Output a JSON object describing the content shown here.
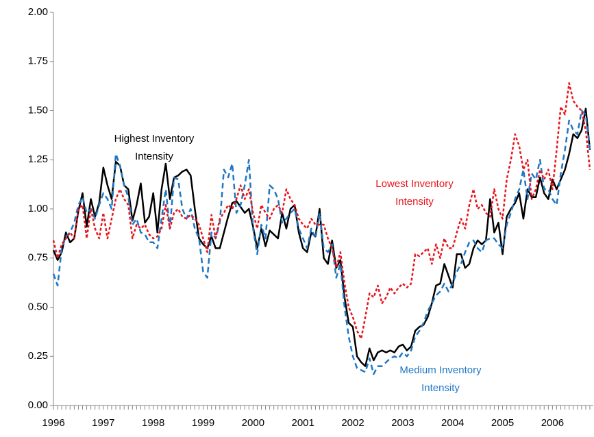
{
  "chart_data": {
    "type": "line",
    "categories": [
      "1996",
      null,
      null,
      null,
      null,
      null,
      null,
      null,
      null,
      null,
      null,
      null,
      "1997",
      null,
      null,
      null,
      null,
      null,
      null,
      null,
      null,
      null,
      null,
      null,
      "1998",
      null,
      null,
      null,
      null,
      null,
      null,
      null,
      null,
      null,
      null,
      null,
      "1999",
      null,
      null,
      null,
      null,
      null,
      null,
      null,
      null,
      null,
      null,
      null,
      "2000",
      null,
      null,
      null,
      null,
      null,
      null,
      null,
      null,
      null,
      null,
      null,
      "2001",
      null,
      null,
      null,
      null,
      null,
      null,
      null,
      null,
      null,
      null,
      null,
      "2002",
      null,
      null,
      null,
      null,
      null,
      null,
      null,
      null,
      null,
      null,
      null,
      "2003",
      null,
      null,
      null,
      null,
      null,
      null,
      null,
      null,
      null,
      null,
      null,
      "2004",
      null,
      null,
      null,
      null,
      null,
      null,
      null,
      null,
      null,
      null,
      null,
      "2005",
      null,
      null,
      null,
      null,
      null,
      null,
      null,
      null,
      null,
      null,
      null,
      "2006",
      null,
      null,
      null,
      null,
      null,
      null,
      null,
      null,
      null
    ],
    "series": [
      {
        "label_lines": [
          "Highest Inventory",
          "Intensity"
        ],
        "color": "#000000",
        "dash": "solid",
        "values": [
          0.79,
          0.74,
          0.78,
          0.88,
          0.83,
          0.85,
          0.99,
          1.08,
          0.91,
          1.05,
          0.96,
          1.03,
          1.21,
          1.12,
          1.05,
          1.24,
          1.22,
          1.12,
          1.1,
          0.94,
          1.02,
          1.13,
          0.93,
          0.96,
          1.08,
          0.88,
          1.1,
          1.23,
          1.05,
          1.16,
          1.17,
          1.19,
          1.2,
          1.17,
          1.0,
          0.85,
          0.82,
          0.8,
          0.86,
          0.8,
          0.8,
          0.88,
          0.96,
          1.03,
          1.04,
          1.01,
          0.98,
          1.0,
          0.91,
          0.8,
          0.9,
          0.81,
          0.89,
          0.87,
          0.85,
          0.98,
          0.9,
          1.0,
          1.02,
          0.88,
          0.8,
          0.78,
          0.88,
          0.86,
          1.0,
          0.75,
          0.72,
          0.84,
          0.7,
          0.74,
          0.55,
          0.42,
          0.4,
          0.25,
          0.22,
          0.2,
          0.29,
          0.23,
          0.27,
          0.28,
          0.27,
          0.28,
          0.27,
          0.3,
          0.31,
          0.28,
          0.3,
          0.38,
          0.4,
          0.41,
          0.45,
          0.52,
          0.61,
          0.62,
          0.72,
          0.66,
          0.6,
          0.77,
          0.77,
          0.7,
          0.72,
          0.8,
          0.84,
          0.82,
          0.84,
          1.05,
          0.88,
          0.93,
          0.77,
          0.96,
          1.0,
          1.03,
          1.08,
          0.95,
          1.1,
          1.06,
          1.06,
          1.16,
          1.08,
          1.05,
          1.15,
          1.1,
          1.15,
          1.2,
          1.28,
          1.38,
          1.36,
          1.4,
          1.51,
          1.3
        ]
      },
      {
        "label_lines": [
          "Medium Inventory",
          "Intensity"
        ],
        "color": "#1f77c4",
        "dash": "dashed",
        "values": [
          0.67,
          0.61,
          0.8,
          0.86,
          0.88,
          0.93,
          1.02,
          1.06,
          0.98,
          1.0,
          0.95,
          1.02,
          1.08,
          1.05,
          1.0,
          1.28,
          1.22,
          1.12,
          1.06,
          0.92,
          0.95,
          0.88,
          0.87,
          0.83,
          0.83,
          0.8,
          0.95,
          1.1,
          0.9,
          1.16,
          1.15,
          1.0,
          0.95,
          1.0,
          0.9,
          0.85,
          0.68,
          0.65,
          0.88,
          0.85,
          0.93,
          1.2,
          1.16,
          1.23,
          0.98,
          1.02,
          1.12,
          1.25,
          0.9,
          0.77,
          0.92,
          0.85,
          1.12,
          1.1,
          1.05,
          0.93,
          0.95,
          0.98,
          1.0,
          0.9,
          0.85,
          0.8,
          0.9,
          0.85,
          0.98,
          0.8,
          0.78,
          0.82,
          0.65,
          0.72,
          0.5,
          0.35,
          0.25,
          0.19,
          0.18,
          0.17,
          0.24,
          0.16,
          0.2,
          0.2,
          0.22,
          0.24,
          0.25,
          0.24,
          0.27,
          0.25,
          0.28,
          0.35,
          0.38,
          0.42,
          0.48,
          0.52,
          0.56,
          0.58,
          0.62,
          0.58,
          0.62,
          0.68,
          0.72,
          0.78,
          0.83,
          0.84,
          0.8,
          0.78,
          0.84,
          0.85,
          0.85,
          0.82,
          0.8,
          0.92,
          0.98,
          1.05,
          1.1,
          1.2,
          1.05,
          1.18,
          1.15,
          1.25,
          1.1,
          1.1,
          1.05,
          1.02,
          1.18,
          1.3,
          1.45,
          1.4,
          1.38,
          1.5,
          1.48,
          1.3
        ]
      },
      {
        "label_lines": [
          "Lowest Inventory",
          "Intensity"
        ],
        "color": "#e8141c",
        "dash": "dotted",
        "values": [
          0.84,
          0.75,
          0.82,
          0.85,
          0.88,
          0.85,
          1.0,
          1.02,
          0.85,
          1.0,
          0.9,
          0.85,
          0.98,
          0.85,
          0.95,
          1.05,
          1.1,
          1.05,
          1.02,
          0.85,
          0.92,
          0.9,
          0.92,
          0.87,
          0.85,
          0.86,
          0.9,
          1.02,
          0.9,
          0.98,
          1.0,
          0.96,
          0.95,
          0.97,
          0.95,
          0.92,
          0.85,
          0.78,
          0.97,
          0.85,
          0.95,
          0.98,
          1.02,
          1.0,
          1.05,
          1.12,
          1.05,
          1.1,
          0.98,
          0.9,
          1.02,
          0.98,
          0.95,
          1.0,
          1.02,
          0.98,
          1.1,
          1.05,
          1.02,
          0.95,
          0.92,
          0.9,
          0.95,
          0.92,
          0.92,
          0.92,
          0.85,
          0.8,
          0.7,
          0.78,
          0.62,
          0.5,
          0.45,
          0.38,
          0.34,
          0.45,
          0.57,
          0.55,
          0.61,
          0.52,
          0.55,
          0.6,
          0.57,
          0.6,
          0.62,
          0.6,
          0.62,
          0.77,
          0.76,
          0.78,
          0.8,
          0.72,
          0.82,
          0.75,
          0.85,
          0.8,
          0.8,
          0.88,
          0.95,
          0.9,
          1.02,
          1.1,
          1.0,
          1.02,
          0.98,
          0.96,
          1.1,
          1.0,
          0.95,
          1.15,
          1.25,
          1.38,
          1.32,
          1.2,
          1.25,
          1.05,
          1.1,
          1.2,
          1.15,
          1.2,
          1.1,
          1.3,
          1.52,
          1.48,
          1.64,
          1.55,
          1.52,
          1.5,
          1.4,
          1.2
        ]
      }
    ],
    "ylim": [
      0,
      2
    ],
    "yticks": [
      {
        "value": 0,
        "label": "0.00"
      },
      {
        "value": 0.25,
        "label": "0.25"
      },
      {
        "value": 0.5,
        "label": "0.50"
      },
      {
        "value": 0.75,
        "label": "0.75"
      },
      {
        "value": 1,
        "label": "1.00"
      },
      {
        "value": 1.25,
        "label": "1.25"
      },
      {
        "value": 1.5,
        "label": "1.50"
      },
      {
        "value": 1.75,
        "label": "1.75"
      },
      {
        "value": 2,
        "label": "2.00"
      }
    ],
    "grid": false
  }
}
